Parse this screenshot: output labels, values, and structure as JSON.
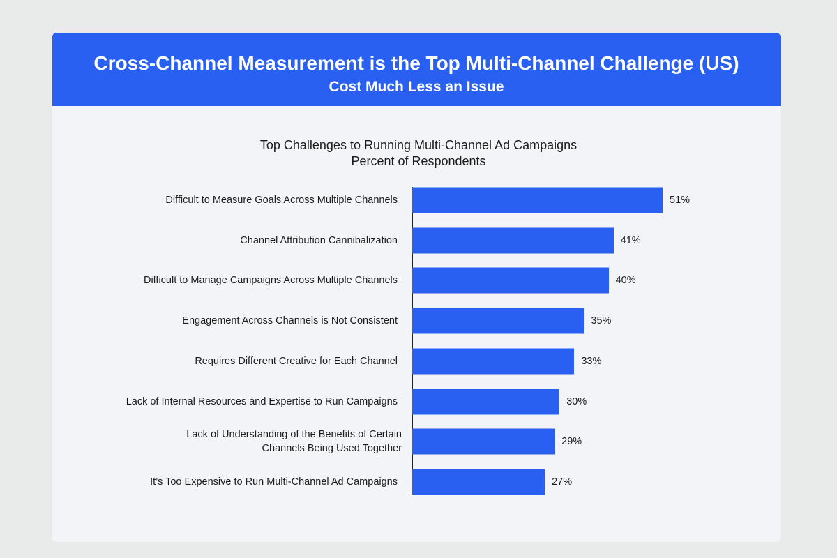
{
  "header": {
    "title": "Cross-Channel Measurement is the Top Multi-Channel Challenge (US)",
    "subtitle": "Cost Much Less an Issue"
  },
  "chart_data": {
    "type": "bar",
    "orientation": "horizontal",
    "title": "Top Challenges to Running Multi-Channel Ad Campaigns",
    "subtitle": "Percent of Respondents",
    "categories": [
      "Difficult to Measure Goals Across Multiple Channels",
      "Channel Attribution Cannibalization",
      "Difficult to Manage Campaigns Across Multiple Channels",
      "Engagement Across Channels is Not Consistent",
      "Requires Different Creative for Each Channel",
      "Lack of Internal Resources and Expertise to Run Campaigns",
      "Lack of Understanding of the Benefits of Certain\nChannels Being Used Together",
      "It’s Too Expensive to Run Multi-Channel Ad Campaigns"
    ],
    "values": [
      51,
      41,
      40,
      35,
      33,
      30,
      29,
      27
    ],
    "value_labels": [
      "51%",
      "41%",
      "40%",
      "35%",
      "33%",
      "30%",
      "29%",
      "27%"
    ],
    "color": "#2a60f2"
  }
}
